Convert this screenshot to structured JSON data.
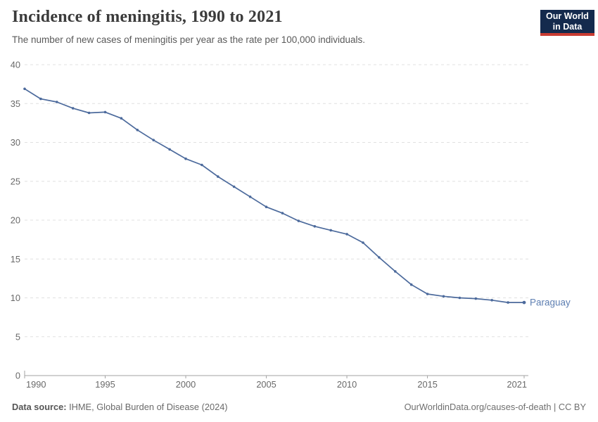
{
  "header": {
    "title": "Incidence of meningitis, 1990 to 2021",
    "subtitle": "The number of new cases of meningitis per year as the rate per 100,000 individuals."
  },
  "logo": {
    "line1": "Our World",
    "line2": "in Data",
    "bg_color": "#142a4d",
    "stripe_color": "#c93c32"
  },
  "chart_data": {
    "type": "line",
    "title": "Incidence of meningitis, 1990 to 2021",
    "xlabel": "",
    "ylabel": "",
    "x": [
      1990,
      1991,
      1992,
      1993,
      1994,
      1995,
      1996,
      1997,
      1998,
      1999,
      2000,
      2001,
      2002,
      2003,
      2004,
      2005,
      2006,
      2007,
      2008,
      2009,
      2010,
      2011,
      2012,
      2013,
      2014,
      2015,
      2016,
      2017,
      2018,
      2019,
      2020,
      2021
    ],
    "series": [
      {
        "name": "Paraguay",
        "color": "#4c6a9c",
        "values": [
          36.9,
          35.6,
          35.2,
          34.4,
          33.8,
          33.9,
          33.1,
          31.6,
          30.3,
          29.1,
          27.9,
          27.1,
          25.6,
          24.3,
          23.0,
          21.7,
          20.9,
          19.9,
          19.2,
          18.7,
          18.2,
          17.1,
          15.2,
          13.4,
          11.7,
          10.5,
          10.2,
          10.0,
          9.9,
          9.7,
          9.4,
          9.4
        ]
      }
    ],
    "ylim": [
      0,
      40
    ],
    "yticks": [
      0,
      5,
      10,
      15,
      20,
      25,
      30,
      35,
      40
    ],
    "xticks": [
      1990,
      1995,
      2000,
      2005,
      2010,
      2015,
      2021
    ],
    "grid": true,
    "legend_position": "end-of-line-label",
    "entity_label": "Paraguay",
    "entity_label_color": "#5e7fb2",
    "grid_color": "#e0e0e0",
    "axis_color": "#a3a3a3",
    "tick_label_color": "#696969"
  },
  "footer": {
    "source_label": "Data source:",
    "source_text": "IHME, Global Burden of Disease (2024)",
    "link": "OurWorldinData.org/causes-of-death | CC BY"
  }
}
